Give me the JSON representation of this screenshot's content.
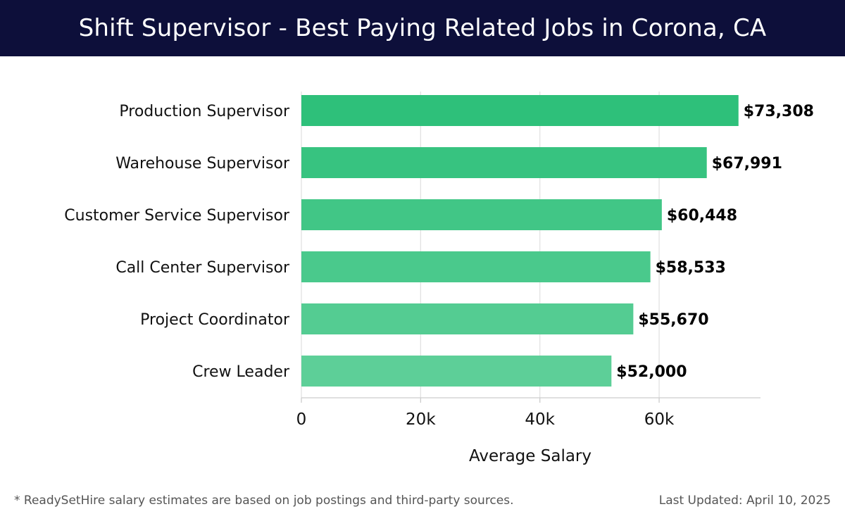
{
  "header": {
    "title": "Shift Supervisor - Best Paying Related Jobs in Corona, CA"
  },
  "chart_data": {
    "type": "bar",
    "orientation": "horizontal",
    "categories": [
      "Production Supervisor",
      "Warehouse Supervisor",
      "Customer Service Supervisor",
      "Call Center Supervisor",
      "Project Coordinator",
      "Crew Leader"
    ],
    "values": [
      73308,
      67991,
      60448,
      58533,
      55670,
      52000
    ],
    "value_labels": [
      "$73,308",
      "$67,991",
      "$60,448",
      "$58,533",
      "$55,670",
      "$52,000"
    ],
    "xlabel": "Average Salary",
    "ylabel": "",
    "xlim": [
      0,
      77000
    ],
    "xticks": [
      0,
      20000,
      40000,
      60000
    ],
    "xtick_labels": [
      "0",
      "20k",
      "40k",
      "60k"
    ],
    "grid": "vertical",
    "colors": {
      "bar_dark": "#2ec07a",
      "bar_light": "#5dcf98",
      "grid": "#e2e2e2",
      "axis": "#cccccc",
      "text": "#111111"
    }
  },
  "footer": {
    "note": "* ReadySetHire salary estimates are based on job postings and third-party sources.",
    "updated": "Last Updated: April 10, 2025"
  }
}
